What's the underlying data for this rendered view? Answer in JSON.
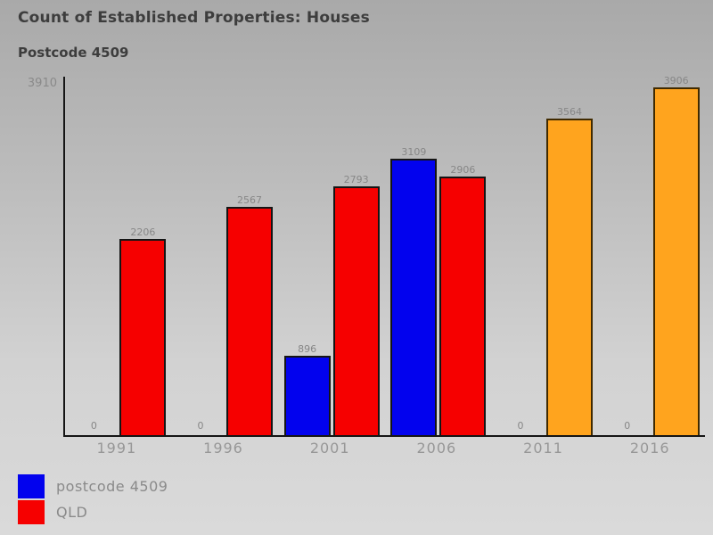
{
  "header": {
    "title": "Count of Established Properties: Houses",
    "subtitle": "Postcode 4509"
  },
  "chart_data": {
    "type": "bar",
    "title": "Count of Established Properties: Houses",
    "subtitle": "Postcode 4509",
    "categories": [
      "1991",
      "1996",
      "2001",
      "2006",
      "2011",
      "2016"
    ],
    "series": [
      {
        "name": "postcode 4509",
        "color": "#0202ee",
        "values": [
          0,
          0,
          896,
          3109,
          0,
          0
        ],
        "point_colors": [
          "#0202ee",
          "#0202ee",
          "#0202ee",
          "#0202ee",
          "#0202ee",
          "#0202ee"
        ]
      },
      {
        "name": "QLD",
        "color": "#f60000",
        "values": [
          2206,
          2567,
          2793,
          2906,
          3564,
          3906
        ],
        "point_colors": [
          "#f60000",
          "#f60000",
          "#f60000",
          "#f60000",
          "#ffa41e",
          "#ffa41e"
        ]
      }
    ],
    "ylim": [
      0,
      3910
    ],
    "y_axis_top_label": "3910",
    "bar_value_labels_shown": true,
    "grid": false,
    "legend": {
      "position": "bottom-left",
      "entries": [
        {
          "label": "postcode 4509",
          "color": "#0202ee"
        },
        {
          "label": "QLD",
          "color": "#f60000"
        }
      ]
    },
    "colors": {
      "bar_border": "#141414",
      "orange_bar_border": "#402a00",
      "axis": "#151515",
      "value_label_text": "#878787",
      "axis_label_text": "#979797",
      "title_text": "#3d3d3d"
    }
  }
}
